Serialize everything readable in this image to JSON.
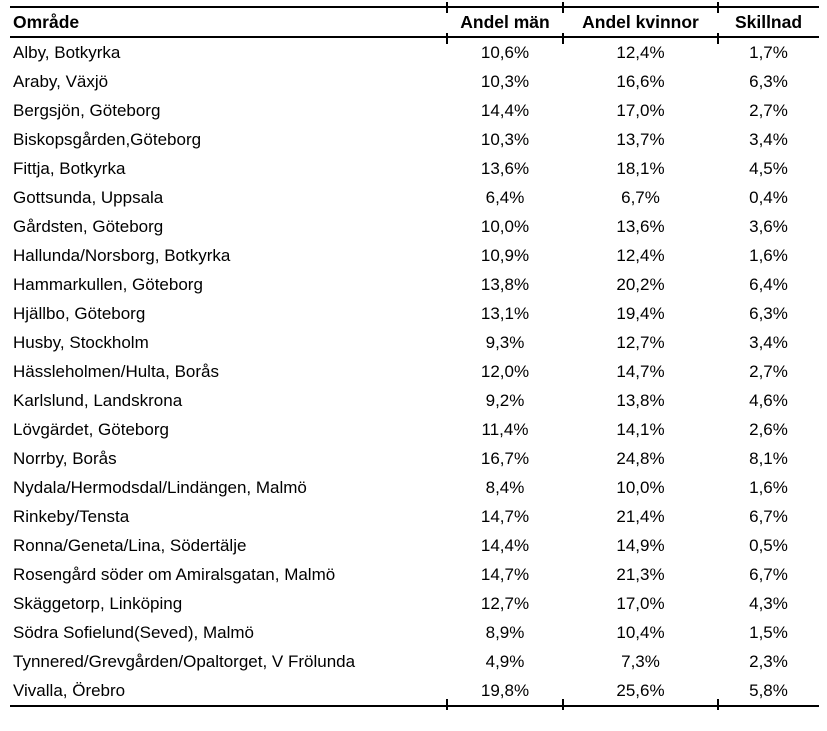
{
  "colors": {
    "background": "#ffffff",
    "text": "#000000",
    "rule": "#000000"
  },
  "table": {
    "columns": [
      "Område",
      "Andel män",
      "Andel kvinnor",
      "Skillnad"
    ],
    "column_keys": [
      "omrade",
      "andel-man",
      "andel-kvinnor",
      "skillnad"
    ],
    "rows": [
      [
        "Alby, Botkyrka",
        "10,6%",
        "12,4%",
        "1,7%"
      ],
      [
        "Araby, Växjö",
        "10,3%",
        "16,6%",
        "6,3%"
      ],
      [
        "Bergsjön, Göteborg",
        "14,4%",
        "17,0%",
        "2,7%"
      ],
      [
        "Biskopsgården,Göteborg",
        "10,3%",
        "13,7%",
        "3,4%"
      ],
      [
        "Fittja, Botkyrka",
        "13,6%",
        "18,1%",
        "4,5%"
      ],
      [
        "Gottsunda, Uppsala",
        "6,4%",
        "6,7%",
        "0,4%"
      ],
      [
        "Gårdsten, Göteborg",
        "10,0%",
        "13,6%",
        "3,6%"
      ],
      [
        "Hallunda/Norsborg, Botkyrka",
        "10,9%",
        "12,4%",
        "1,6%"
      ],
      [
        "Hammarkullen, Göteborg",
        "13,8%",
        "20,2%",
        "6,4%"
      ],
      [
        "Hjällbo, Göteborg",
        "13,1%",
        "19,4%",
        "6,3%"
      ],
      [
        "Husby, Stockholm",
        "9,3%",
        "12,7%",
        "3,4%"
      ],
      [
        "Hässleholmen/Hulta, Borås",
        "12,0%",
        "14,7%",
        "2,7%"
      ],
      [
        "Karlslund, Landskrona",
        "9,2%",
        "13,8%",
        "4,6%"
      ],
      [
        "Lövgärdet, Göteborg",
        "11,4%",
        "14,1%",
        "2,6%"
      ],
      [
        "Norrby, Borås",
        "16,7%",
        "24,8%",
        "8,1%"
      ],
      [
        "Nydala/Hermodsdal/Lindängen, Malmö",
        "8,4%",
        "10,0%",
        "1,6%"
      ],
      [
        "Rinkeby/Tensta",
        "14,7%",
        "21,4%",
        "6,7%"
      ],
      [
        "Ronna/Geneta/Lina, Södertälje",
        "14,4%",
        "14,9%",
        "0,5%"
      ],
      [
        "Rosengård söder om Amiralsgatan, Malmö",
        "14,7%",
        "21,3%",
        "6,7%"
      ],
      [
        "Skäggetorp, Linköping",
        "12,7%",
        "17,0%",
        "4,3%"
      ],
      [
        "Södra Sofielund(Seved), Malmö",
        "8,9%",
        "10,4%",
        "1,5%"
      ],
      [
        "Tynnered/Grevgården/Opaltorget, V Frölunda",
        "4,9%",
        "7,3%",
        "2,3%"
      ],
      [
        "Vivalla, Örebro",
        "19,8%",
        "25,6%",
        "5,8%"
      ]
    ]
  }
}
